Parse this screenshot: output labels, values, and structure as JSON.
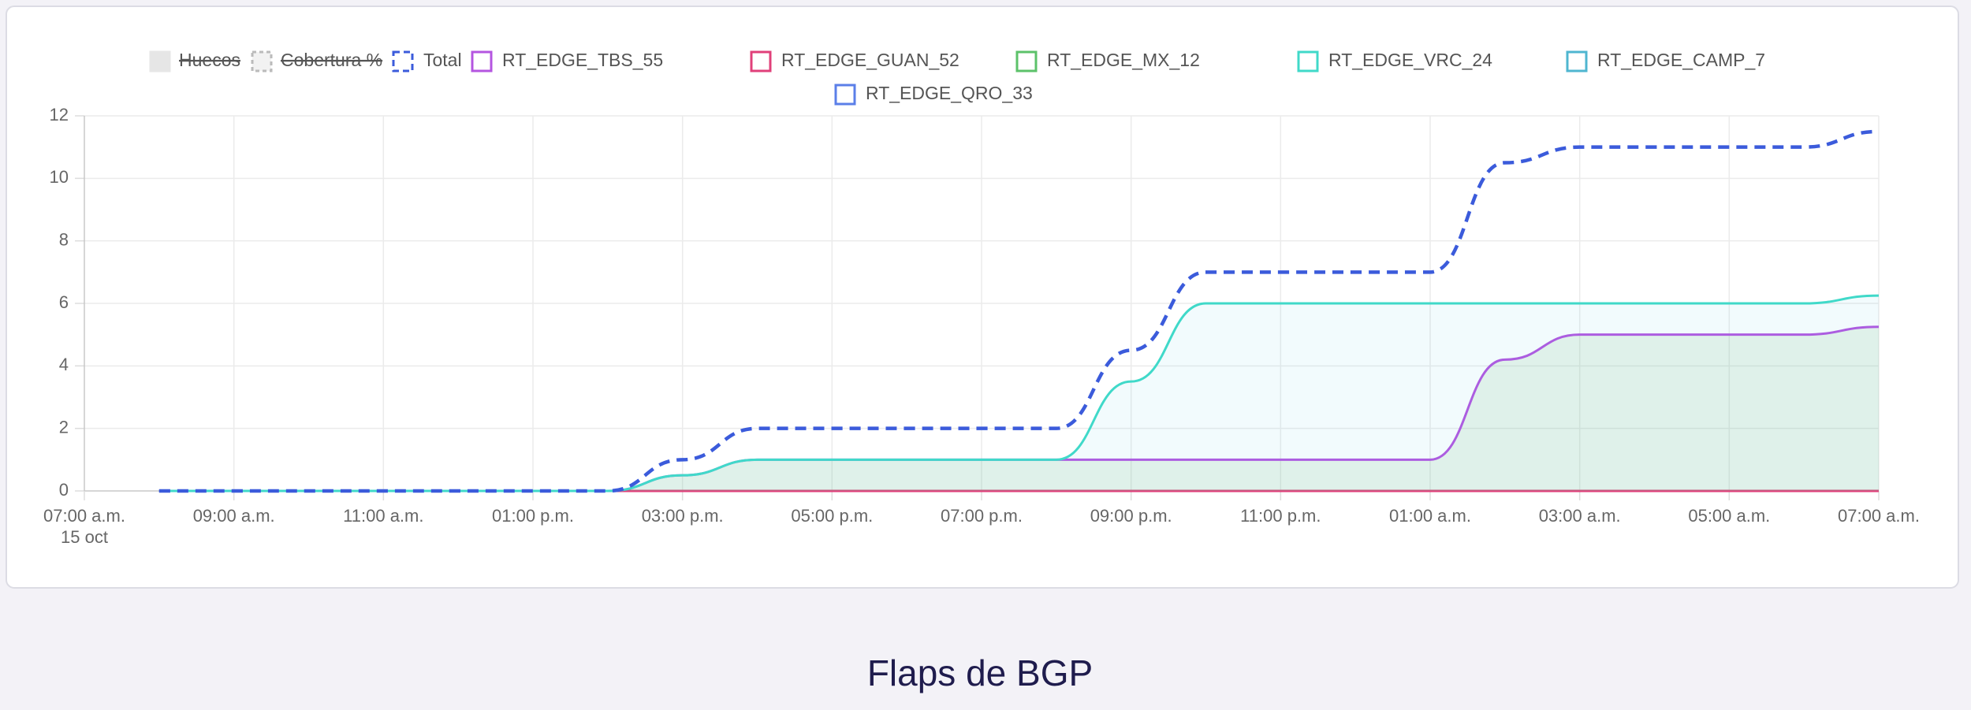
{
  "chart_data": {
    "type": "line",
    "title": "Flaps de BGP",
    "x_date_label": "15 oct",
    "x": [
      8,
      9,
      10,
      11,
      12,
      13,
      14,
      15,
      16,
      17,
      18,
      19,
      20,
      21,
      22,
      23,
      24,
      25,
      26,
      27,
      28,
      29,
      30,
      31
    ],
    "xlim": [
      7,
      31
    ],
    "xticks": [
      {
        "value": 7,
        "label": "07:00 a.m."
      },
      {
        "value": 9,
        "label": "09:00 a.m."
      },
      {
        "value": 11,
        "label": "11:00 a.m."
      },
      {
        "value": 13,
        "label": "01:00 p.m."
      },
      {
        "value": 15,
        "label": "03:00 p.m."
      },
      {
        "value": 17,
        "label": "05:00 p.m."
      },
      {
        "value": 19,
        "label": "07:00 p.m."
      },
      {
        "value": 21,
        "label": "09:00 p.m."
      },
      {
        "value": 23,
        "label": "11:00 p.m."
      },
      {
        "value": 25,
        "label": "01:00 a.m."
      },
      {
        "value": 27,
        "label": "03:00 a.m."
      },
      {
        "value": 29,
        "label": "05:00 a.m."
      },
      {
        "value": 31,
        "label": "07:00 a.m."
      }
    ],
    "ylim": [
      0,
      12
    ],
    "yticks": [
      0,
      2,
      4,
      6,
      8,
      10,
      12
    ],
    "grid": true,
    "hidden_series": [
      {
        "name": "Huecos"
      },
      {
        "name": "Cobertura %"
      }
    ],
    "series": [
      {
        "name": "Total",
        "color": "#3b5bdb",
        "dashed": true,
        "values": [
          0,
          0,
          0,
          0,
          0,
          0,
          0,
          1,
          2,
          2,
          2,
          2,
          2,
          4.5,
          7,
          7,
          7,
          7,
          10.5,
          11,
          11,
          11,
          11,
          11.5
        ]
      },
      {
        "name": "RT_EDGE_TBS_55",
        "color": "#b455e0",
        "fill": "rgba(120,190,120,0.15)",
        "values": [
          0,
          0,
          0,
          0,
          0,
          0,
          0,
          0.5,
          1,
          1,
          1,
          1,
          1,
          1,
          1,
          1,
          1,
          1,
          4.2,
          5,
          5,
          5,
          5,
          5.25
        ]
      },
      {
        "name": "RT_EDGE_GUAN_52",
        "color": "#e0407a",
        "values": [
          0,
          0,
          0,
          0,
          0,
          0,
          0,
          0,
          0,
          0,
          0,
          0,
          0,
          0,
          0,
          0,
          0,
          0,
          0,
          0,
          0,
          0,
          0,
          0
        ]
      },
      {
        "name": "RT_EDGE_MX_12",
        "color": "#5cc26a",
        "values": [
          0,
          0,
          0,
          0,
          0,
          0,
          0,
          0,
          0,
          0,
          0,
          0,
          0,
          0,
          0,
          0,
          0,
          0,
          0,
          0,
          0,
          0,
          0,
          0
        ]
      },
      {
        "name": "RT_EDGE_VRC_24",
        "color": "#40d9c9",
        "fill": "rgba(64,200,220,0.07)",
        "values": [
          0,
          0,
          0,
          0,
          0,
          0,
          0,
          0.5,
          1,
          1,
          1,
          1,
          1,
          3.5,
          6,
          6,
          6,
          6,
          6,
          6,
          6,
          6,
          6,
          6.25
        ]
      },
      {
        "name": "RT_EDGE_CAMP_7",
        "color": "#4fb6d0",
        "values": [
          0,
          0,
          0,
          0,
          0,
          0,
          0,
          0,
          0,
          0,
          0,
          0,
          0,
          0,
          0,
          0,
          0,
          0,
          0,
          0,
          0,
          0,
          0,
          0
        ]
      },
      {
        "name": "RT_EDGE_QRO_33",
        "color": "#5b7fe8",
        "values": [
          0,
          0,
          0,
          0,
          0,
          0,
          0,
          0,
          0,
          0,
          0,
          0,
          0,
          0,
          0,
          0,
          0,
          0,
          0,
          0,
          0,
          0,
          0,
          0
        ]
      }
    ]
  }
}
